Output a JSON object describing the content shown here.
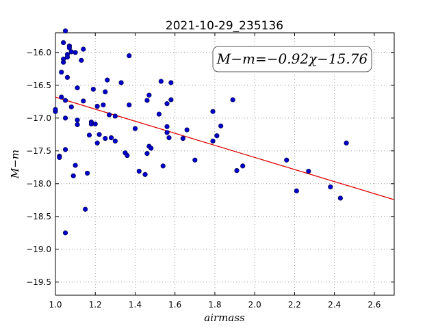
{
  "chart_data": {
    "type": "scatter",
    "title": "2021-10-29_235136",
    "xlabel": "airmass",
    "ylabel": "M−m",
    "xlim": [
      1.0,
      2.7
    ],
    "ylim": [
      -19.7,
      -15.7
    ],
    "y_inverted": true,
    "grid": true,
    "x_ticks": [
      "1.0",
      "1.2",
      "1.4",
      "1.6",
      "1.8",
      "2.0",
      "2.2",
      "2.4",
      "2.6"
    ],
    "y_ticks": [
      "−16.0",
      "−16.5",
      "−17.0",
      "−17.5",
      "−18.0",
      "−18.5",
      "−19.0",
      "−19.5"
    ],
    "annotation": "M−m=−0.92χ−15.76",
    "point_color": "#0000cc",
    "fit_color": "#dd0000",
    "fit": {
      "slope": -0.92,
      "intercept": -15.76
    },
    "points": [
      [
        1.0,
        -16.9
      ],
      [
        1.0,
        -16.87
      ],
      [
        1.02,
        -17.58
      ],
      [
        1.02,
        -17.6
      ],
      [
        1.03,
        -16.3
      ],
      [
        1.03,
        -16.68
      ],
      [
        1.04,
        -16.1
      ],
      [
        1.04,
        -16.15
      ],
      [
        1.04,
        -15.85
      ],
      [
        1.05,
        -15.67
      ],
      [
        1.05,
        -16.73
      ],
      [
        1.05,
        -17.0
      ],
      [
        1.05,
        -17.48
      ],
      [
        1.05,
        -18.75
      ],
      [
        1.06,
        -16.03
      ],
      [
        1.06,
        -16.38
      ],
      [
        1.06,
        -16.07
      ],
      [
        1.07,
        -15.9
      ],
      [
        1.07,
        -15.93
      ],
      [
        1.08,
        -15.99
      ],
      [
        1.08,
        -16.83
      ],
      [
        1.09,
        -17.88
      ],
      [
        1.1,
        -16.0
      ],
      [
        1.1,
        -17.72
      ],
      [
        1.11,
        -16.54
      ],
      [
        1.11,
        -17.03
      ],
      [
        1.11,
        -17.1
      ],
      [
        1.13,
        -16.12
      ],
      [
        1.14,
        -15.95
      ],
      [
        1.14,
        -16.74
      ],
      [
        1.15,
        -18.39
      ],
      [
        1.16,
        -17.84
      ],
      [
        1.17,
        -17.26
      ],
      [
        1.18,
        -17.06
      ],
      [
        1.18,
        -17.09
      ],
      [
        1.19,
        -16.56
      ],
      [
        1.2,
        -17.09
      ],
      [
        1.21,
        -17.38
      ],
      [
        1.21,
        -16.82
      ],
      [
        1.22,
        -17.25
      ],
      [
        1.24,
        -16.8
      ],
      [
        1.25,
        -16.6
      ],
      [
        1.25,
        -17.31
      ],
      [
        1.26,
        -16.42
      ],
      [
        1.27,
        -16.95
      ],
      [
        1.28,
        -17.3
      ],
      [
        1.3,
        -16.97
      ],
      [
        1.3,
        -17.35
      ],
      [
        1.33,
        -16.46
      ],
      [
        1.35,
        -17.53
      ],
      [
        1.36,
        -17.57
      ],
      [
        1.37,
        -16.05
      ],
      [
        1.37,
        -16.8
      ],
      [
        1.4,
        -17.16
      ],
      [
        1.42,
        -17.81
      ],
      [
        1.45,
        -17.86
      ],
      [
        1.46,
        -17.54
      ],
      [
        1.46,
        -16.73
      ],
      [
        1.47,
        -16.65
      ],
      [
        1.47,
        -17.43
      ],
      [
        1.48,
        -17.46
      ],
      [
        1.52,
        -16.94
      ],
      [
        1.53,
        -16.44
      ],
      [
        1.54,
        -17.73
      ],
      [
        1.56,
        -16.78
      ],
      [
        1.56,
        -17.13
      ],
      [
        1.56,
        -17.22
      ],
      [
        1.57,
        -17.3
      ],
      [
        1.58,
        -16.72
      ],
      [
        1.58,
        -16.46
      ],
      [
        1.64,
        -17.31
      ],
      [
        1.66,
        -17.18
      ],
      [
        1.7,
        -17.64
      ],
      [
        1.79,
        -16.9
      ],
      [
        1.79,
        -17.35
      ],
      [
        1.81,
        -17.27
      ],
      [
        1.83,
        -17.12
      ],
      [
        1.89,
        -16.72
      ],
      [
        1.91,
        -17.8
      ],
      [
        1.94,
        -17.73
      ],
      [
        2.16,
        -17.64
      ],
      [
        2.21,
        -18.11
      ],
      [
        2.27,
        -17.81
      ],
      [
        2.38,
        -18.05
      ],
      [
        2.43,
        -18.22
      ],
      [
        2.46,
        -17.38
      ]
    ]
  }
}
